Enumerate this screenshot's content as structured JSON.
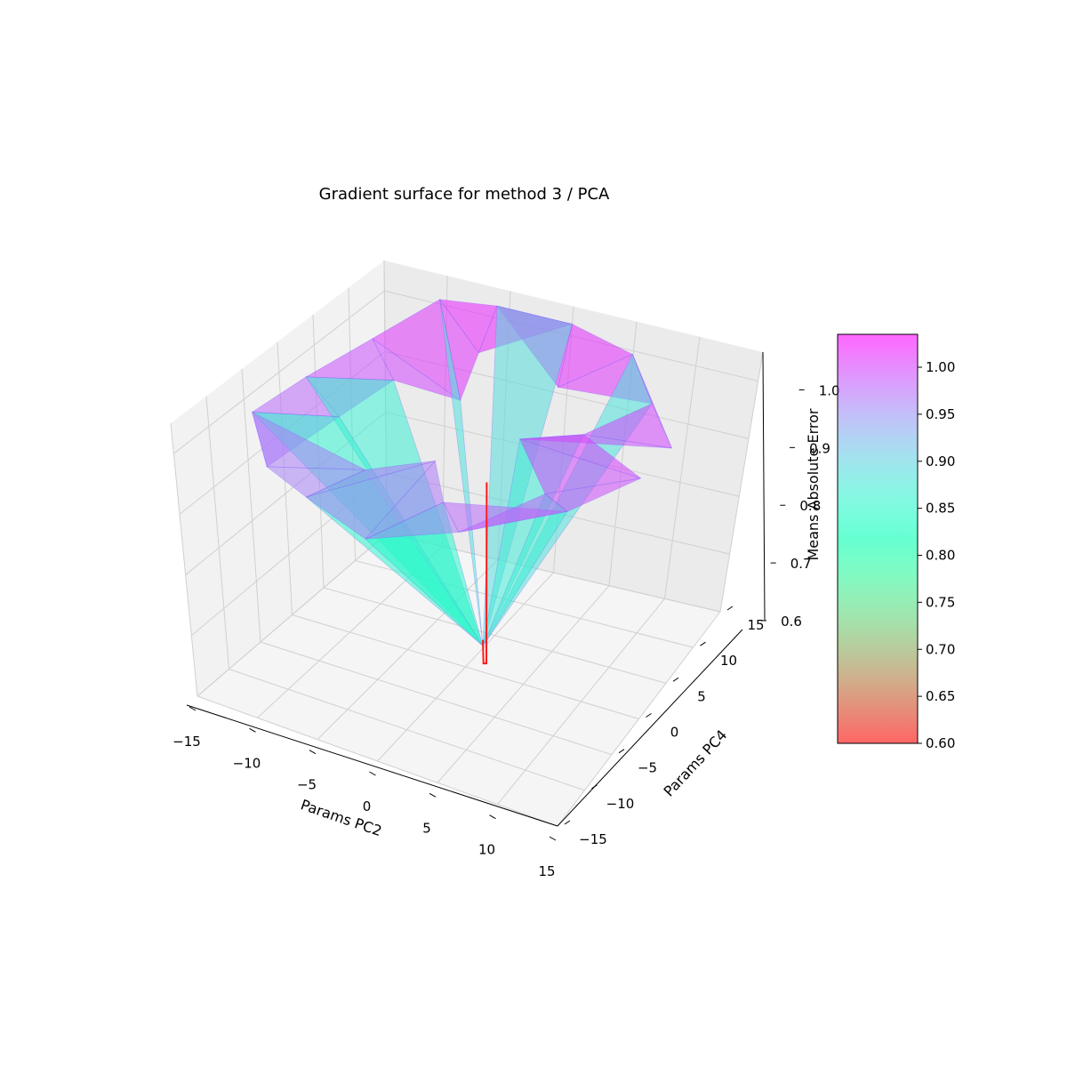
{
  "chart_data": {
    "type": "surface3d",
    "title": "Gradient surface for method 3 / PCA",
    "xlabel": "Params PC2",
    "ylabel": "Params PC4",
    "zlabel": "Means Absolute Error",
    "xlim": [
      -15,
      15
    ],
    "ylim": [
      -15,
      15
    ],
    "zlim": [
      0.6,
      1.05
    ],
    "x_ticks": [
      "−15",
      "−10",
      "−5",
      "0",
      "5",
      "10",
      "15"
    ],
    "y_ticks": [
      "−15",
      "−10",
      "−5",
      "0",
      "5",
      "10",
      "15"
    ],
    "z_ticks": [
      "0.6",
      "0.7",
      "0.8",
      "0.9",
      "1.0"
    ],
    "colormap": "rainbow_r",
    "colorbar": {
      "min": 0.6,
      "max": 1.035,
      "ticks": [
        "0.60",
        "0.65",
        "0.70",
        "0.75",
        "0.80",
        "0.85",
        "0.90",
        "0.95",
        "1.00"
      ]
    },
    "surface_points": [
      {
        "x": -15,
        "y": -4,
        "z": 0.97
      },
      {
        "x": -14,
        "y": 2,
        "z": 0.98
      },
      {
        "x": -12,
        "y": 8,
        "z": 1.0
      },
      {
        "x": -10,
        "y": 14,
        "z": 1.02
      },
      {
        "x": -6,
        "y": 15,
        "z": 1.02
      },
      {
        "x": 0,
        "y": 15,
        "z": 1.02
      },
      {
        "x": 6,
        "y": 13,
        "z": 1.02
      },
      {
        "x": 10,
        "y": 9,
        "z": 1.0
      },
      {
        "x": 14,
        "y": 5,
        "z": 0.99
      },
      {
        "x": 15,
        "y": -1,
        "z": 1.01
      },
      {
        "x": 12,
        "y": -6,
        "z": 0.99
      },
      {
        "x": 6,
        "y": -11,
        "z": 0.97
      },
      {
        "x": 0,
        "y": -14,
        "z": 0.95
      },
      {
        "x": -6,
        "y": -12,
        "z": 0.96
      },
      {
        "x": -11,
        "y": -9,
        "z": 0.95
      },
      {
        "x": -8,
        "y": 4,
        "z": 0.99
      },
      {
        "x": -4,
        "y": 9,
        "z": 1.01
      },
      {
        "x": 3,
        "y": 8,
        "z": 1.0
      },
      {
        "x": 8,
        "y": 3,
        "z": 1.0
      },
      {
        "x": 9,
        "y": -4,
        "z": 0.98
      },
      {
        "x": 3,
        "y": -8,
        "z": 0.97
      },
      {
        "x": -4,
        "y": -7,
        "z": 0.97
      },
      {
        "x": -9,
        "y": -2,
        "z": 0.98
      },
      {
        "x": -2,
        "y": 3,
        "z": 1.0
      },
      {
        "x": 4,
        "y": 1,
        "z": 0.99
      },
      {
        "x": 0,
        "y": -4,
        "z": 0.98
      },
      {
        "x": 1,
        "y": 1,
        "z": 0.63
      }
    ],
    "trajectory": [
      {
        "x": 1,
        "y": 1,
        "z": 0.64
      },
      {
        "x": 1,
        "y": 1.1,
        "z": 0.6
      },
      {
        "x": 1.2,
        "y": 1.2,
        "z": 0.6
      },
      {
        "x": 1.2,
        "y": 1.2,
        "z": 0.9
      }
    ]
  }
}
